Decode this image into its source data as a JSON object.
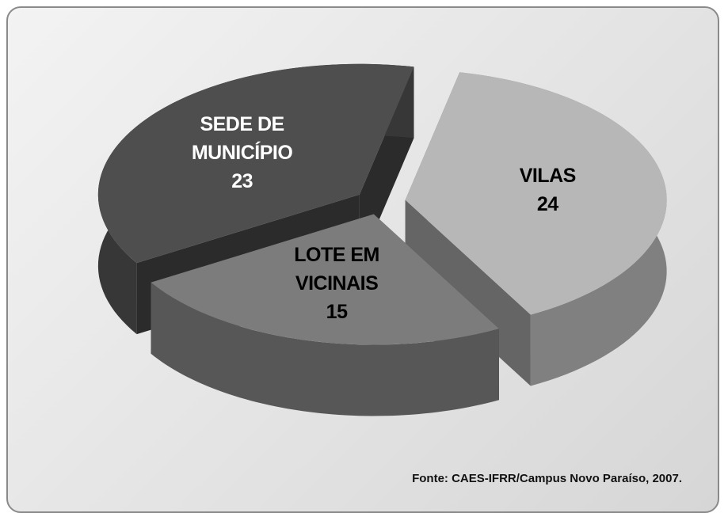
{
  "chart_data": {
    "type": "pie",
    "categories": [
      "VILAS",
      "LOTE EM VICINAIS",
      "SEDE DE MUNICÍPIO"
    ],
    "values": [
      24,
      15,
      23
    ],
    "colors": [
      "#b7b7b7",
      "#7c7c7c",
      "#4e4e4e"
    ],
    "source": "Fonte: CAES-IFRR/Campus Novo Paraíso, 2007."
  }
}
